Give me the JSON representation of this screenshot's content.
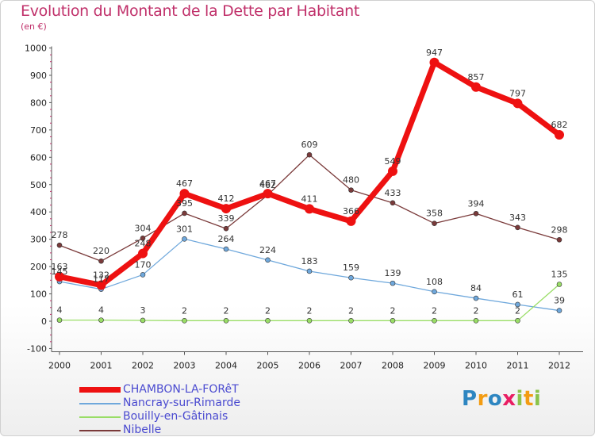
{
  "header": {
    "title": "Evolution du Montant de la Dette par Habitant",
    "subtitle": "(en €)"
  },
  "logo": {
    "letters": [
      "P",
      "r",
      "o",
      "x",
      "i",
      "t",
      "i"
    ],
    "colors": [
      "#2e86c1",
      "#f39c12",
      "#2e86c1",
      "#e91e63",
      "#8bc34a",
      "#f39c12",
      "#8bc34a"
    ]
  },
  "chart_data": {
    "type": "line",
    "title": "Evolution du Montant de la Dette par Habitant",
    "subtitle": "(en €)",
    "xlabel": "",
    "ylabel": "",
    "x": [
      "2000",
      "2001",
      "2002",
      "2003",
      "2004",
      "2005",
      "2006",
      "2007",
      "2008",
      "2009",
      "2010",
      "2011",
      "2012"
    ],
    "yticks": [
      -100,
      0,
      100,
      200,
      300,
      400,
      500,
      600,
      700,
      800,
      900,
      1000
    ],
    "ylim": [
      -100,
      1000
    ],
    "grid": false,
    "legend_position": "bottom-left",
    "series": [
      {
        "name": "CHAMBON-LA-FORêT",
        "color": "#ee1111",
        "width": 7,
        "marker": 6,
        "values": [
          163,
          132,
          248,
          467,
          412,
          467,
          411,
          366,
          549,
          947,
          857,
          797,
          682
        ]
      },
      {
        "name": "Nancray-sur-Rimarde",
        "color": "#6fa8dc",
        "width": 1.3,
        "marker": 3,
        "values": [
          145,
          117,
          170,
          301,
          264,
          224,
          183,
          159,
          139,
          108,
          84,
          61,
          39
        ]
      },
      {
        "name": "Bouilly-en-Gâtinais",
        "color": "#99dd66",
        "width": 1.3,
        "marker": 3,
        "values": [
          4,
          4,
          3,
          2,
          2,
          2,
          2,
          2,
          2,
          2,
          2,
          2,
          135
        ]
      },
      {
        "name": "Nibelle",
        "color": "#7a3a3a",
        "width": 1.3,
        "marker": 3,
        "values": [
          278,
          220,
          304,
          395,
          339,
          462,
          609,
          480,
          433,
          358,
          394,
          343,
          298
        ]
      }
    ],
    "data_labels": {
      "CHAMBON-LA-FORêT": [
        "163",
        "132",
        "248",
        "467",
        "412",
        "467",
        "411",
        "366",
        "549",
        "947",
        "857",
        "797",
        "682"
      ],
      "Nancray-sur-Rimarde": [
        "145",
        "117",
        "170",
        "301",
        "264",
        "224",
        "183",
        "159",
        "139",
        "108",
        "84",
        "61",
        "39"
      ],
      "Bouilly-en-Gâtinais": [
        "4",
        "4",
        "3",
        "2",
        "2",
        "2",
        "2",
        "2",
        "2",
        "2",
        "2",
        "2",
        "135"
      ],
      "Nibelle": [
        "278",
        "220",
        "304",
        "395",
        "339",
        "462",
        "609",
        "480",
        "433",
        "358",
        "394",
        "343",
        "298"
      ]
    }
  }
}
